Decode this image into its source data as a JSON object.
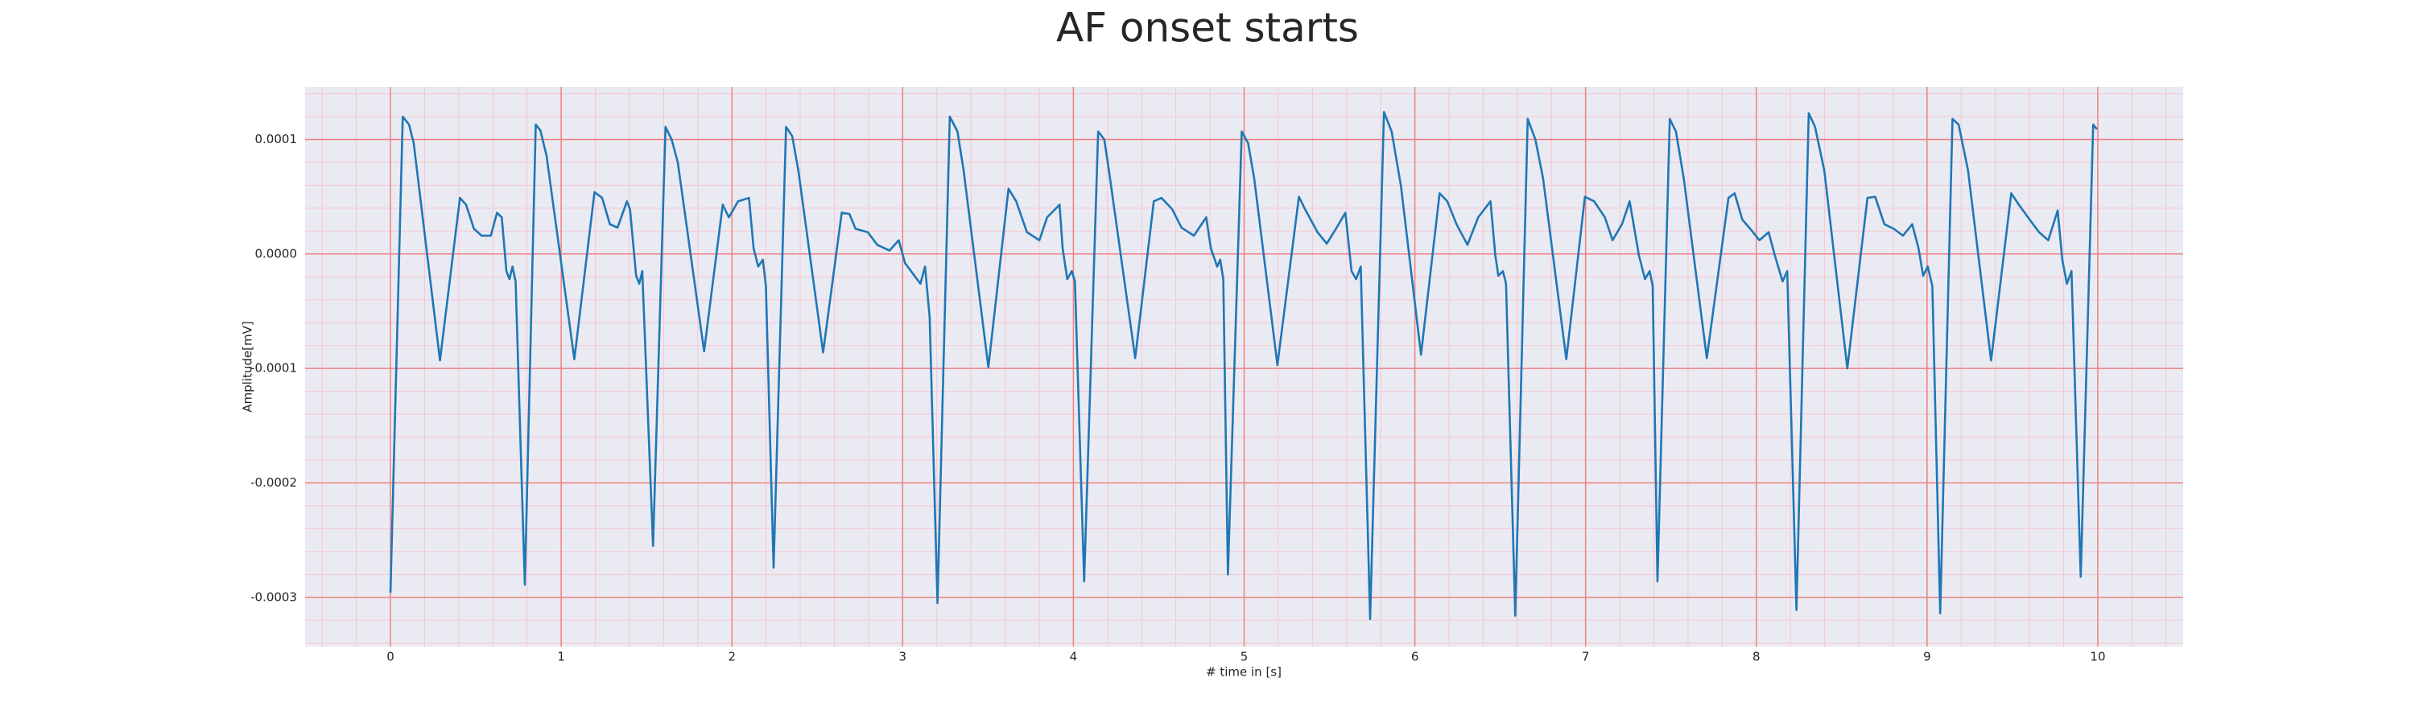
{
  "chart_data": {
    "type": "line",
    "title": "AF onset starts",
    "xlabel": "# time in [s]",
    "ylabel": "Amplitude[mV]",
    "color": "#1f77b4",
    "grid": true,
    "grid_color": "#f08080",
    "minor_grid": {
      "x": 0.2,
      "y": 2e-05,
      "color": "#f7c6cf"
    },
    "background": "#eaeaf2",
    "xlim": [
      -0.5,
      10.5
    ],
    "ylim": [
      -0.000343,
      0.000146
    ],
    "xticks": [
      0,
      1,
      2,
      3,
      4,
      5,
      6,
      7,
      8,
      9,
      10
    ],
    "yticks": [
      -0.0003,
      -0.0002,
      -0.0001,
      {
        "value": 0,
        "label": "0.0000"
      },
      0.0001
    ],
    "x": [
      0,
      0.072,
      0.109,
      0.136,
      0.29,
      0.407,
      0.443,
      0.489,
      0.534,
      0.588,
      0.624,
      0.652,
      0.679,
      0.697,
      0.715,
      0.733,
      0.787,
      0.851,
      0.878,
      0.914,
      1.077,
      1.195,
      1.24,
      1.285,
      1.33,
      1.385,
      1.403,
      1.439,
      1.457,
      1.475,
      1.538,
      1.611,
      1.647,
      1.683,
      1.837,
      1.946,
      1.982,
      2.036,
      2.1,
      2.127,
      2.154,
      2.181,
      2.199,
      2.244,
      2.317,
      2.353,
      2.389,
      2.534,
      2.643,
      2.688,
      2.724,
      2.796,
      2.851,
      2.923,
      2.977,
      3.014,
      3.104,
      3.131,
      3.158,
      3.204,
      3.276,
      3.321,
      3.357,
      3.502,
      3.62,
      3.665,
      3.728,
      3.801,
      3.846,
      3.919,
      3.937,
      3.964,
      3.991,
      4.009,
      4.063,
      4.145,
      4.181,
      4.208,
      4.362,
      4.471,
      4.516,
      4.579,
      4.633,
      4.706,
      4.778,
      4.805,
      4.842,
      4.86,
      4.878,
      4.905,
      4.986,
      5.023,
      5.059,
      5.195,
      5.321,
      5.357,
      5.43,
      5.484,
      5.538,
      5.593,
      5.629,
      5.656,
      5.683,
      5.738,
      5.819,
      5.864,
      5.919,
      6.036,
      6.145,
      6.19,
      6.244,
      6.308,
      6.371,
      6.443,
      6.471,
      6.489,
      6.516,
      6.534,
      6.588,
      6.661,
      6.706,
      6.751,
      6.887,
      6.996,
      7.05,
      7.113,
      7.158,
      7.213,
      7.258,
      7.312,
      7.348,
      7.375,
      7.393,
      7.421,
      7.493,
      7.529,
      7.575,
      7.71,
      7.837,
      7.873,
      7.918,
      7.964,
      8.018,
      8.072,
      8.108,
      8.154,
      8.181,
      8.235,
      8.307,
      8.344,
      8.398,
      8.533,
      8.651,
      8.696,
      8.75,
      8.805,
      8.859,
      8.913,
      8.95,
      8.977,
      9.004,
      9.031,
      9.077,
      9.149,
      9.185,
      9.24,
      9.375,
      9.493,
      9.538,
      9.601,
      9.656,
      9.71,
      9.765,
      9.792,
      9.819,
      9.846,
      9.9,
      9.973,
      9.995
    ],
    "values": [
      -0.000296,
      0.00012,
      0.000113,
      9.7e-05,
      -9.3e-05,
      4.9e-05,
      4.3e-05,
      2.2e-05,
      1.6e-05,
      1.6e-05,
      3.6e-05,
      3.2e-05,
      -1.5e-05,
      -2.2e-05,
      -1.1e-05,
      -2.4e-05,
      -0.000289,
      0.000113,
      0.000108,
      8.6e-05,
      -9.2e-05,
      5.4e-05,
      4.9e-05,
      2.6e-05,
      2.3e-05,
      4.6e-05,
      3.9e-05,
      -1.9e-05,
      -2.6e-05,
      -1.5e-05,
      -0.000255,
      0.000111,
      0.0001,
      8e-05,
      -8.5e-05,
      4.3e-05,
      3.2e-05,
      4.6e-05,
      4.9e-05,
      5e-06,
      -1.1e-05,
      -5e-06,
      -2.8e-05,
      -0.000274,
      0.000111,
      0.000103,
      7.3e-05,
      -8.6e-05,
      3.6e-05,
      3.5e-05,
      2.2e-05,
      1.9e-05,
      8e-06,
      3e-06,
      1.2e-05,
      -8e-06,
      -2.6e-05,
      -1.1e-05,
      -5.5e-05,
      -0.000305,
      0.00012,
      0.000107,
      7.3e-05,
      -9.9e-05,
      5.7e-05,
      4.6e-05,
      1.9e-05,
      1.2e-05,
      3.2e-05,
      4.3e-05,
      5e-06,
      -2.2e-05,
      -1.5e-05,
      -2.4e-05,
      -0.000286,
      0.000107,
      0.0001,
      7.3e-05,
      -9.1e-05,
      4.6e-05,
      4.9e-05,
      3.9e-05,
      2.3e-05,
      1.6e-05,
      3.2e-05,
      5e-06,
      -1.1e-05,
      -5e-06,
      -2.2e-05,
      -0.00028,
      0.000107,
      9.7e-05,
      6.6e-05,
      -9.7e-05,
      5e-05,
      3.9e-05,
      1.9e-05,
      9e-06,
      2.2e-05,
      3.6e-05,
      -1.5e-05,
      -2.2e-05,
      -1.1e-05,
      -0.000319,
      0.000124,
      0.000107,
      5.9e-05,
      -8.8e-05,
      5.3e-05,
      4.6e-05,
      2.6e-05,
      8e-06,
      3.2e-05,
      4.6e-05,
      -1e-06,
      -1.9e-05,
      -1.5e-05,
      -2.6e-05,
      -0.000316,
      0.000118,
      0.0001,
      6.6e-05,
      -9.2e-05,
      5e-05,
      4.6e-05,
      3.2e-05,
      1.2e-05,
      2.6e-05,
      4.6e-05,
      -1e-06,
      -2.2e-05,
      -1.5e-05,
      -2.8e-05,
      -0.000286,
      0.000118,
      0.000107,
      6.6e-05,
      -9.1e-05,
      4.9e-05,
      5.3e-05,
      3e-05,
      2.2e-05,
      1.2e-05,
      1.9e-05,
      -1e-06,
      -2.4e-05,
      -1.5e-05,
      -0.000311,
      0.000123,
      0.000111,
      7.3e-05,
      -0.0001,
      4.9e-05,
      5e-05,
      2.6e-05,
      2.2e-05,
      1.6e-05,
      2.6e-05,
      5e-06,
      -1.9e-05,
      -1.1e-05,
      -2.8e-05,
      -0.000314,
      0.000118,
      0.000113,
      7.3e-05,
      -9.3e-05,
      5.3e-05,
      4.3e-05,
      3e-05,
      1.9e-05,
      1.2e-05,
      3.8e-05,
      -5e-06,
      -2.6e-05,
      -1.5e-05,
      -0.000282,
      0.000113,
      0.000109
    ]
  }
}
